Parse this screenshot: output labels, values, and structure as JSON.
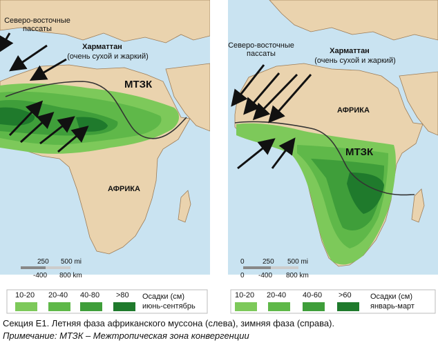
{
  "left_map": {
    "labels": {
      "ne_trades": [
        "Северо-восточные",
        "пассаты"
      ],
      "harmattan_title": "Харматтан",
      "harmattan_desc": "(очень сухой и жаркий)",
      "itcz": "МТЗК",
      "africa": "АФРИКА"
    },
    "scale": {
      "mi": [
        "250",
        "500 mi"
      ],
      "km": [
        "-400",
        "800 km"
      ],
      "zero": ""
    },
    "legend": {
      "classes": [
        "10-20",
        "20-40",
        "40-80",
        ">80"
      ],
      "colors": [
        "#7dc95a",
        "#5fb849",
        "#3f9e3a",
        "#1f7a2c"
      ],
      "title": "Осадки (см)",
      "period": "июнь-сентябрь"
    }
  },
  "right_map": {
    "labels": {
      "ne_trades": [
        "Северо-восточные",
        "пассаты"
      ],
      "harmattan_title": "Харматтан",
      "harmattan_desc": "(очень сухой и жаркий)",
      "itcz": "МТЗК",
      "africa": "АФРИКА"
    },
    "scale": {
      "mi": [
        "250",
        "500 mi"
      ],
      "km": [
        "-400",
        "800 km"
      ],
      "zero": "0"
    },
    "legend": {
      "classes": [
        "10-20",
        "20-40",
        "40-60",
        ">60"
      ],
      "colors": [
        "#7dc95a",
        "#5fb849",
        "#3f9e3a",
        "#1f7a2c"
      ],
      "title": "Осадки (см)",
      "period": "январь-март"
    }
  },
  "caption": {
    "line1": "Секция E1. Летняя фаза африканского муссона (слева), зимняя фаза (справа).",
    "line2": "Примечание: МТЗК – Межтропическая зона конвергенции"
  },
  "colors": {
    "ocean": "#c9e3f1",
    "land": "#ead3ae",
    "outline": "#9c7b55",
    "arrow": "#111111"
  }
}
